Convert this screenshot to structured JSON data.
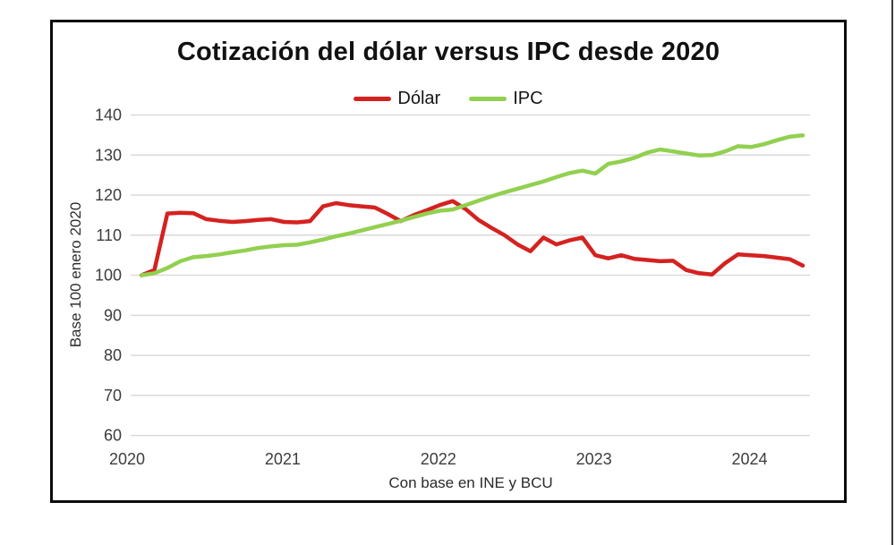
{
  "chart_data": {
    "type": "line",
    "title": "Cotización del dólar versus IPC desde 2020",
    "ylabel": "Base 100 enero 2020",
    "xlabel": "",
    "caption": "Con base en INE y BCU",
    "x_frequency": "monthly",
    "x_start": "2020-01",
    "x_end": "2024-04",
    "x_tick_labels": [
      "2020",
      "2021",
      "2022",
      "2023",
      "2024"
    ],
    "x_tick_month_indices": [
      0,
      12,
      24,
      36,
      48
    ],
    "y_ticks": [
      60,
      70,
      80,
      90,
      100,
      110,
      120,
      130,
      140
    ],
    "ylim": [
      60,
      140
    ],
    "grid": "horizontal",
    "gridline_color": "#d9d9d9",
    "legend_position": "top-center",
    "series": [
      {
        "name": "Dólar",
        "color": "#d42220",
        "values": [
          100.0,
          101.3,
          115.4,
          115.6,
          115.5,
          114.0,
          113.6,
          113.3,
          113.5,
          113.8,
          114.0,
          113.3,
          113.2,
          113.5,
          117.2,
          118.0,
          117.5,
          117.2,
          116.9,
          115.3,
          113.5,
          115.0,
          116.2,
          117.5,
          118.5,
          116.5,
          113.8,
          111.8,
          110.0,
          107.7,
          106.0,
          109.4,
          107.7,
          108.7,
          109.4,
          105.0,
          104.2,
          105.0,
          104.1,
          103.8,
          103.5,
          103.6,
          101.3,
          100.5,
          100.2,
          103.0,
          105.2,
          105.0,
          104.8,
          104.4,
          104.0,
          102.4
        ]
      },
      {
        "name": "IPC",
        "color": "#92d050",
        "values": [
          100.0,
          100.5,
          101.8,
          103.5,
          104.5,
          104.8,
          105.2,
          105.7,
          106.2,
          106.8,
          107.2,
          107.5,
          107.6,
          108.2,
          108.9,
          109.7,
          110.4,
          111.2,
          112.0,
          112.8,
          113.6,
          114.5,
          115.4,
          116.1,
          116.4,
          117.5,
          118.6,
          119.7,
          120.7,
          121.6,
          122.5,
          123.4,
          124.5,
          125.5,
          126.1,
          125.4,
          127.8,
          128.4,
          129.3,
          130.6,
          131.4,
          130.9,
          130.4,
          129.9,
          130.0,
          130.9,
          132.2,
          132.0,
          132.7,
          133.7,
          134.6,
          134.9
        ]
      }
    ]
  }
}
